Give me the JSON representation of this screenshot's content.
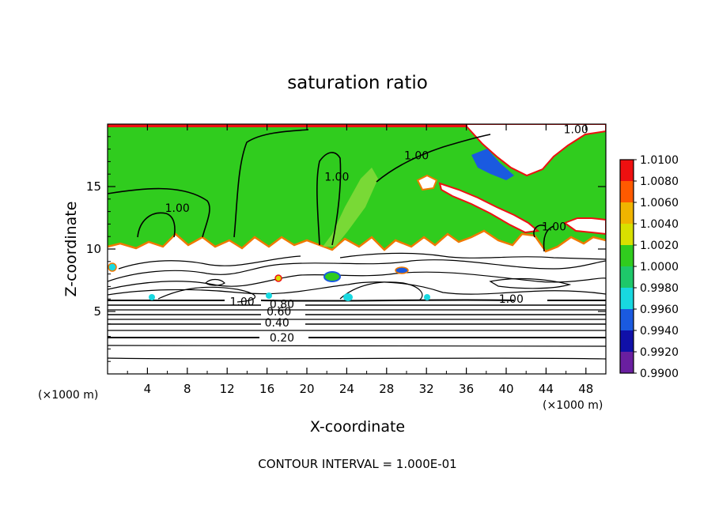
{
  "chart_data": {
    "type": "heatmap",
    "title": "saturation ratio",
    "xlabel": "X-coordinate",
    "ylabel": "Z-coordinate",
    "x_unit_label": "(×1000 m)",
    "z_unit_label": "(×1000 m)",
    "xlim": [
      0,
      50
    ],
    "ylim": [
      0,
      20
    ],
    "x_ticks": [
      4,
      8,
      12,
      16,
      20,
      24,
      28,
      32,
      36,
      40,
      44,
      48
    ],
    "y_ticks": [
      5,
      10,
      15
    ],
    "contour_interval_text": "CONTOUR INTERVAL = 1.000E-01",
    "colorbar": {
      "levels": [
        "0.9900",
        "0.9920",
        "0.9940",
        "0.9960",
        "0.9980",
        "1.0000",
        "1.0020",
        "1.0040",
        "1.0060",
        "1.0080",
        "1.0100"
      ],
      "colors": [
        "#6a1fa0",
        "#1010a8",
        "#1a5ae0",
        "#18d8e0",
        "#1ec86a",
        "#30cc1e",
        "#d8e000",
        "#f0b400",
        "#ff5a00",
        "#ee1010",
        "#f4a0a0"
      ]
    },
    "contour_labels": [
      {
        "text": "0.20",
        "x": 17.5,
        "z": 2.9
      },
      {
        "text": "0.40",
        "x": 17.0,
        "z": 4.1
      },
      {
        "text": "0.60",
        "x": 17.2,
        "z": 5.0
      },
      {
        "text": "0.80",
        "x": 17.5,
        "z": 5.6
      },
      {
        "text": "1.00",
        "x": 13.5,
        "z": 5.8
      },
      {
        "text": "1.00",
        "x": 40.5,
        "z": 6.0
      },
      {
        "text": "1.00",
        "x": 7.0,
        "z": 13.3
      },
      {
        "text": "1.00",
        "x": 23.0,
        "z": 15.8
      },
      {
        "text": "1.00",
        "x": 31.0,
        "z": 17.5
      },
      {
        "text": "1.00",
        "x": 44.8,
        "z": 11.8
      },
      {
        "text": "1.00",
        "x": 47.0,
        "z": 19.6
      }
    ],
    "series": []
  }
}
